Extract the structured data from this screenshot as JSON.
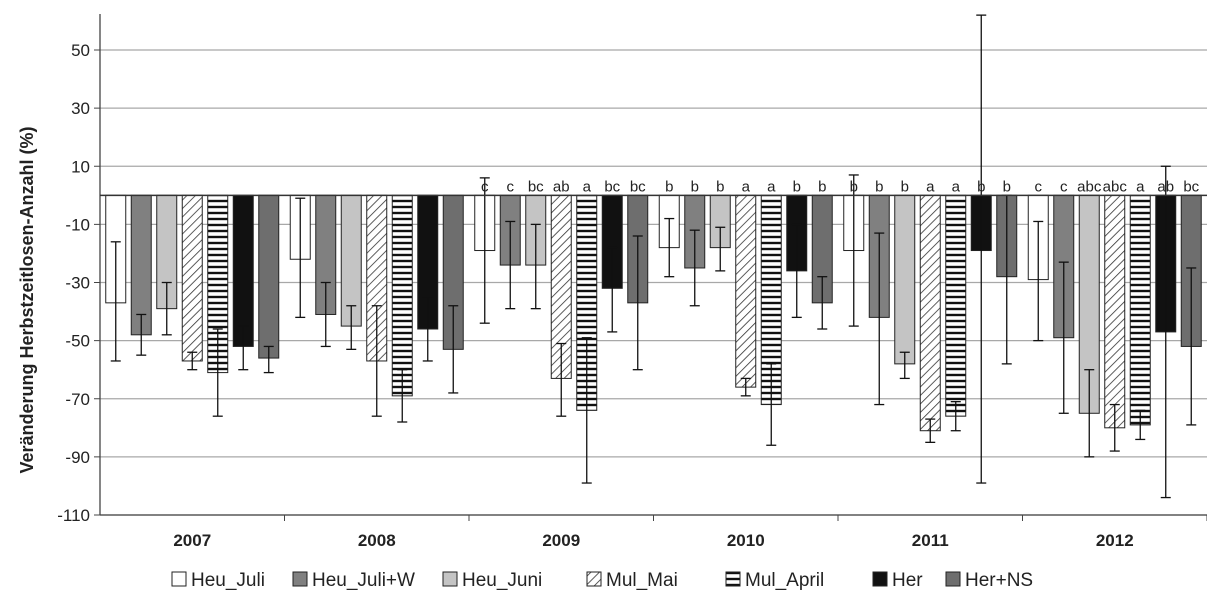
{
  "chart_data": {
    "type": "bar",
    "title": "",
    "xlabel": "",
    "ylabel": "Veränderung Herbstzeitlosen-Anzahl (%)",
    "ylim": [
      -110,
      60
    ],
    "yticks": [
      50,
      30,
      10,
      -10,
      -30,
      -50,
      -70,
      -90,
      -110
    ],
    "grid": true,
    "legend_position": "bottom",
    "categories": [
      "2007",
      "2008",
      "2009",
      "2010",
      "2011",
      "2012"
    ],
    "series": [
      {
        "name": "Heu_Juli",
        "fill": "white",
        "color": "#ffffff",
        "values": [
          -37,
          -22,
          -19,
          -18,
          -19,
          -29
        ],
        "err_low": [
          -57,
          -42,
          -44,
          -28,
          -45,
          -50
        ],
        "err_high": [
          -16,
          -1,
          6,
          -8,
          7,
          -9
        ],
        "labels": [
          "",
          "",
          "c",
          "b",
          "b",
          "c"
        ]
      },
      {
        "name": "Heu_Juli+W",
        "fill": "solid",
        "color": "#808080",
        "values": [
          -48,
          -41,
          -24,
          -25,
          -42,
          -49
        ],
        "err_low": [
          -55,
          -52,
          -39,
          -38,
          -72,
          -75
        ],
        "err_high": [
          -41,
          -30,
          -9,
          -12,
          -13,
          -23
        ],
        "labels": [
          "",
          "",
          "c",
          "b",
          "b",
          "c"
        ]
      },
      {
        "name": "Heu_Juni",
        "fill": "solid",
        "color": "#c4c4c4",
        "values": [
          -39,
          -45,
          -24,
          -18,
          -58,
          -75
        ],
        "err_low": [
          -48,
          -53,
          -39,
          -26,
          -63,
          -90
        ],
        "err_high": [
          -30,
          -38,
          -10,
          -11,
          -54,
          -60
        ],
        "labels": [
          "",
          "",
          "bc",
          "b",
          "b",
          "abc"
        ]
      },
      {
        "name": "Mul_Mai",
        "fill": "diagonal",
        "color": "#ffffff",
        "values": [
          -57,
          -57,
          -63,
          -66,
          -81,
          -80
        ],
        "err_low": [
          -60,
          -76,
          -76,
          -69,
          -85,
          -88
        ],
        "err_high": [
          -54,
          -38,
          -51,
          -63,
          -77,
          -72
        ],
        "labels": [
          "",
          "",
          "ab",
          "a",
          "a",
          "abc"
        ]
      },
      {
        "name": "Mul_April",
        "fill": "horizontal",
        "color": "#ffffff",
        "values": [
          -61,
          -69,
          -74,
          -72,
          -76,
          -79
        ],
        "err_low": [
          -76,
          -78,
          -99,
          -86,
          -81,
          -84
        ],
        "err_high": [
          -46,
          -60,
          -49,
          -58,
          -71,
          -74
        ],
        "labels": [
          "",
          "",
          "a",
          "a",
          "a",
          "a"
        ]
      },
      {
        "name": "Her",
        "fill": "solid",
        "color": "#111111",
        "values": [
          -52,
          -46,
          -32,
          -26,
          -19,
          -47
        ],
        "err_low": [
          -60,
          -57,
          -47,
          -42,
          -99,
          -104
        ],
        "err_high": [
          -45,
          -35,
          -18,
          -10,
          62,
          10
        ],
        "labels": [
          "",
          "",
          "bc",
          "b",
          "b",
          "ab"
        ]
      },
      {
        "name": "Her+NS",
        "fill": "solid",
        "color": "#6e6e6e",
        "values": [
          -56,
          -53,
          -37,
          -37,
          -28,
          -52
        ],
        "err_low": [
          -61,
          -68,
          -60,
          -46,
          -58,
          -79
        ],
        "err_high": [
          -52,
          -38,
          -14,
          -28,
          0,
          -25
        ],
        "labels": [
          "",
          "",
          "bc",
          "b",
          "b",
          "bc"
        ]
      }
    ]
  }
}
